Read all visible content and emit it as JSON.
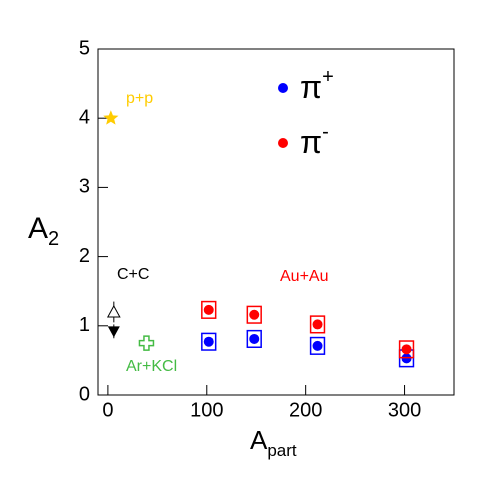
{
  "chart_data": {
    "type": "scatter",
    "y_label": "A",
    "y_label_sub": "2",
    "x_label": "A",
    "x_label_sub": "part",
    "xlim": [
      -10,
      350
    ],
    "xticks": [
      0,
      100,
      200,
      300
    ],
    "ylim": [
      0,
      5
    ],
    "yticks": [
      0,
      1,
      2,
      3,
      4,
      5
    ],
    "series": [
      {
        "name": "π",
        "name_sup": "+",
        "color": "#0000ff",
        "marker": "circle",
        "legend": true,
        "x": [
          102,
          148,
          212,
          302
        ],
        "values": [
          0.77,
          0.81,
          0.71,
          0.53
        ],
        "sys": [
          0.12,
          0.12,
          0.12,
          0.12
        ],
        "sys_x": [
          7,
          7,
          7,
          7
        ]
      },
      {
        "name": "π",
        "name_sup": "-",
        "color": "#ff0000",
        "marker": "circle",
        "legend": true,
        "x": [
          102,
          148,
          212,
          302
        ],
        "values": [
          1.23,
          1.16,
          1.02,
          0.66
        ],
        "sys": [
          0.12,
          0.12,
          0.12,
          0.12
        ],
        "sys_x": [
          7,
          7,
          7,
          7
        ]
      },
      {
        "color": "#ffcc00",
        "marker": "star",
        "x": [
          3
        ],
        "values": [
          4.0
        ]
      },
      {
        "color": "#000000",
        "marker": "open-triangle",
        "x": [
          6
        ],
        "values": [
          1.2
        ],
        "errors": [
          0.15
        ]
      },
      {
        "color": "#000000",
        "marker": "down-triangle",
        "x": [
          6
        ],
        "values": [
          0.92
        ],
        "errors": [
          0.1
        ]
      },
      {
        "color": "#44bb44",
        "marker": "open-cross",
        "x": [
          39
        ],
        "values": [
          0.75
        ]
      }
    ],
    "annotations": [
      {
        "text": "p+p",
        "color": "#ffcc00"
      },
      {
        "text": "C+C",
        "color": "#000000"
      },
      {
        "text": "Ar+KCl",
        "color": "#44bb44"
      },
      {
        "text": "Au+Au",
        "color": "#ff0000"
      }
    ]
  }
}
